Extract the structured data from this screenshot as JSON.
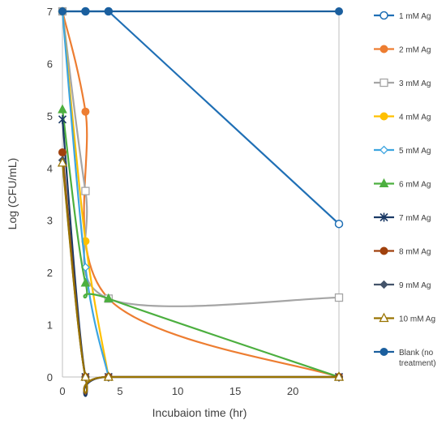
{
  "chart_data": {
    "type": "scatter",
    "xlabel": "Incubaion time (hr)",
    "ylabel": "Log (CFU/mL)",
    "xlim": [
      0,
      24
    ],
    "ylim": [
      0,
      7
    ],
    "xticks": [
      0,
      5,
      10,
      15,
      20
    ],
    "yticks": [
      0,
      1,
      2,
      3,
      4,
      5,
      6,
      7
    ],
    "grid": false,
    "legend_position": "right",
    "series": [
      {
        "name": "1 mM Ag",
        "color": "#1F6FB5",
        "marker": "circle-open",
        "curve": "straight",
        "x": [
          0,
          2,
          4,
          24
        ],
        "y": [
          7.0,
          7.0,
          7.0,
          2.93
        ]
      },
      {
        "name": "2 mM Ag",
        "color": "#ED7D31",
        "marker": "circle",
        "curve": "smooth",
        "x": [
          0,
          2,
          4,
          24
        ],
        "y": [
          7.0,
          5.08,
          1.5,
          0
        ]
      },
      {
        "name": "3 mM Ag",
        "color": "#A5A5A5",
        "marker": "square-open",
        "curve": "smooth",
        "x": [
          0,
          2,
          4,
          24
        ],
        "y": [
          7.0,
          3.56,
          1.5,
          1.52
        ]
      },
      {
        "name": "4 mM Ag",
        "color": "#FFC000",
        "marker": "circle",
        "curve": "smooth",
        "x": [
          0,
          2,
          4
        ],
        "y": [
          7.0,
          2.6,
          0
        ]
      },
      {
        "name": "5 mM Ag",
        "color": "#3DA5E0",
        "marker": "diamond-open",
        "curve": "smooth",
        "x": [
          0,
          2,
          4
        ],
        "y": [
          7.0,
          2.1,
          0
        ]
      },
      {
        "name": "6 mM Ag",
        "color": "#4CAF3F",
        "marker": "triangle",
        "curve": "smooth",
        "x": [
          0,
          2,
          4,
          24
        ],
        "y": [
          5.12,
          1.8,
          1.5,
          0
        ]
      },
      {
        "name": "7 mM Ag",
        "color": "#1B3A66",
        "marker": "star",
        "curve": "smooth",
        "x": [
          0,
          2,
          4,
          24
        ],
        "y": [
          4.93,
          0,
          0,
          0
        ]
      },
      {
        "name": "8 mM Ag",
        "color": "#A0410D",
        "marker": "circle",
        "curve": "smooth",
        "x": [
          0,
          2,
          4,
          24
        ],
        "y": [
          4.3,
          0,
          0,
          0
        ]
      },
      {
        "name": "9 mM Ag",
        "color": "#44546A",
        "marker": "diamond",
        "curve": "smooth",
        "x": [
          0,
          2,
          4,
          24
        ],
        "y": [
          4.15,
          0,
          0,
          0
        ]
      },
      {
        "name": "10 mM Ag",
        "color": "#997300",
        "marker": "triangle-open",
        "curve": "smooth",
        "x": [
          0,
          2,
          4,
          24
        ],
        "y": [
          4.1,
          0,
          0,
          0
        ]
      },
      {
        "name": "Blank (no treatment)",
        "color": "#1B5F9E",
        "marker": "circle",
        "curve": "straight",
        "x": [
          0,
          2,
          4,
          24
        ],
        "y": [
          7.0,
          7.0,
          7.0,
          7.0
        ]
      }
    ]
  }
}
